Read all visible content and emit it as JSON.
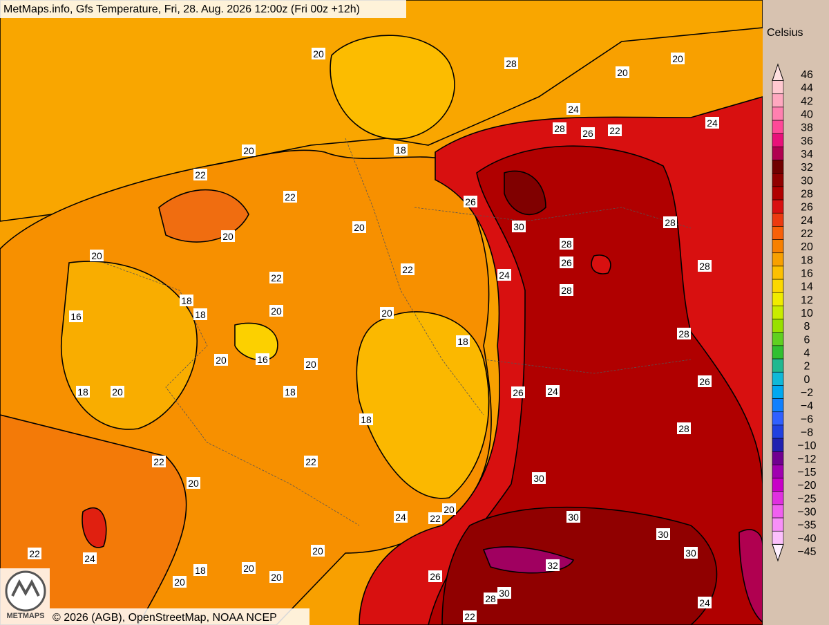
{
  "header": {
    "title": "MetMaps.info, Gfs Temperature, Fri, 28. Aug. 2026 12:00z (Fri 00z +12h)"
  },
  "footer": {
    "credit": "© 2026 (AGB), OpenStreetMap, NOAA NCEP",
    "logo_text": "METMAPS"
  },
  "legend": {
    "unit": "Celsius",
    "labels": [
      "46",
      "44",
      "42",
      "40",
      "38",
      "36",
      "34",
      "32",
      "30",
      "28",
      "26",
      "24",
      "22",
      "20",
      "18",
      "16",
      "14",
      "12",
      "10",
      "8",
      "6",
      "4",
      "2",
      "0",
      "−2",
      "−4",
      "−6",
      "−8",
      "−10",
      "−12",
      "−15",
      "−20",
      "−25",
      "−30",
      "−35",
      "−40",
      "−45"
    ],
    "colors": [
      "#ffe0e0",
      "#ffc8d0",
      "#ffa8c0",
      "#ff80b0",
      "#ff4898",
      "#e8107a",
      "#b00050",
      "#700000",
      "#900000",
      "#b00000",
      "#d81010",
      "#ec3a10",
      "#f86008",
      "#f88000",
      "#f8a000",
      "#fcc000",
      "#fcd800",
      "#f0ec00",
      "#c8ec00",
      "#98e000",
      "#60d020",
      "#30c030",
      "#20b890",
      "#10b8d8",
      "#00a8f0",
      "#1080ff",
      "#3060ff",
      "#2040e0",
      "#2020b0",
      "#700090",
      "#a000b0",
      "#c800c8",
      "#e030e0",
      "#f060f0",
      "#f890f8",
      "#fcc0fc",
      "#fff0ff"
    ]
  },
  "map_labels": [
    "20",
    "28",
    "20",
    "20",
    "24",
    "24",
    "28",
    "26",
    "22",
    "20",
    "18",
    "22",
    "22",
    "26",
    "20",
    "20",
    "30",
    "28",
    "28",
    "26",
    "20",
    "22",
    "22",
    "24",
    "28",
    "28",
    "18",
    "16",
    "18",
    "20",
    "20",
    "18",
    "28",
    "20",
    "16",
    "20",
    "26",
    "18",
    "20",
    "18",
    "26",
    "24",
    "18",
    "28",
    "22",
    "22",
    "30",
    "20",
    "20",
    "24",
    "22",
    "30",
    "30",
    "20",
    "22",
    "24",
    "30",
    "18",
    "20",
    "32",
    "20",
    "26",
    "20",
    "30",
    "28",
    "24",
    "22"
  ]
}
